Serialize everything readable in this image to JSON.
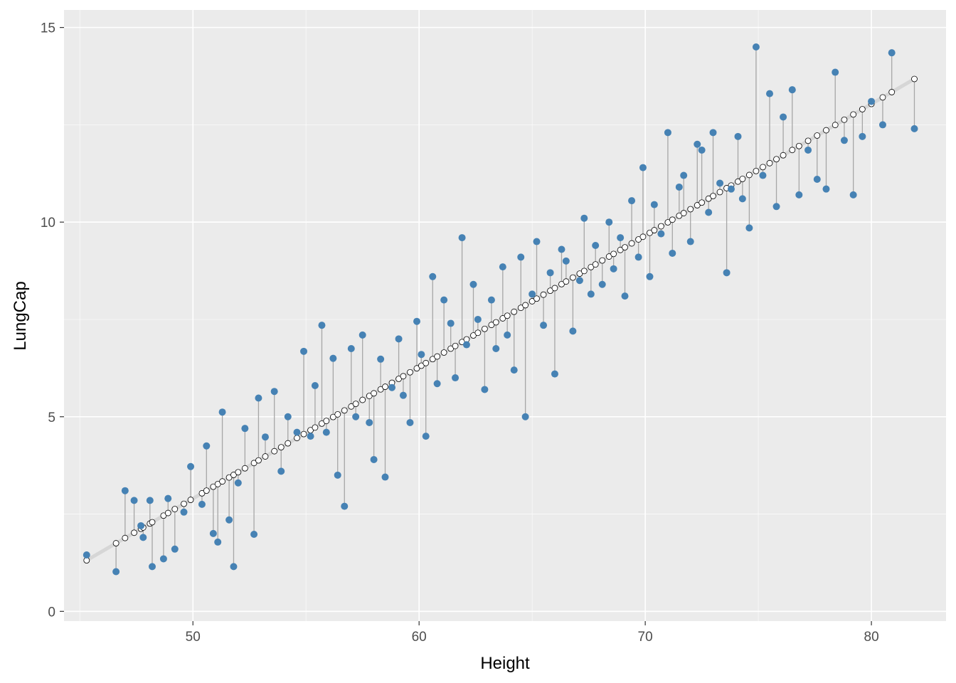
{
  "chart_data": {
    "type": "scatter",
    "title": "",
    "xlabel": "Height",
    "ylabel": "LungCap",
    "xlim": [
      44.3,
      83.3
    ],
    "ylim": [
      -0.25,
      15.45
    ],
    "x_ticks": [
      50,
      60,
      70,
      80
    ],
    "y_ticks": [
      0,
      5,
      10,
      15
    ],
    "x_tick_labels": [
      "50",
      "60",
      "70",
      "80"
    ],
    "y_tick_labels": [
      "0",
      "5",
      "10",
      "15"
    ],
    "grid": true,
    "legend": "none",
    "regression": {
      "intercept": -13.9964,
      "slope": 0.3379
    },
    "colors": {
      "panel_background": "#ebebeb",
      "grid": "#ffffff",
      "observed_points": "#4682b4",
      "fitted_points_fill": "#ffffff",
      "fitted_points_stroke": "#000000",
      "residual_segments": "#a6a6a6",
      "fit_line": "#d6d6d6"
    },
    "series": [
      {
        "role": "observed",
        "x": [
          45.3,
          46.6,
          47.0,
          47.4,
          47.7,
          47.8,
          48.1,
          48.2,
          48.7,
          48.9,
          49.2,
          49.6,
          49.9,
          50.4,
          50.6,
          50.9,
          51.1,
          51.3,
          51.6,
          51.8,
          52.0,
          52.3,
          52.7,
          52.9,
          53.2,
          53.6,
          53.9,
          54.2,
          54.6,
          54.9,
          55.2,
          55.4,
          55.7,
          55.9,
          56.2,
          56.4,
          56.7,
          57.0,
          57.2,
          57.5,
          57.8,
          58.0,
          58.3,
          58.5,
          58.8,
          59.1,
          59.3,
          59.6,
          59.9,
          60.1,
          60.3,
          60.6,
          60.8,
          61.1,
          61.4,
          61.6,
          61.9,
          62.1,
          62.4,
          62.6,
          62.9,
          63.2,
          63.4,
          63.7,
          63.9,
          64.2,
          64.5,
          64.7,
          65.0,
          65.2,
          65.5,
          65.8,
          66.0,
          66.3,
          66.5,
          66.8,
          67.1,
          67.3,
          67.6,
          67.8,
          68.1,
          68.4,
          68.6,
          68.9,
          69.1,
          69.4,
          69.7,
          69.9,
          70.2,
          70.4,
          70.7,
          71.0,
          71.2,
          71.5,
          71.7,
          72.0,
          72.3,
          72.5,
          72.8,
          73.0,
          73.3,
          73.6,
          73.8,
          74.1,
          74.3,
          74.6,
          74.9,
          75.2,
          75.5,
          75.8,
          76.1,
          76.5,
          76.8,
          77.2,
          77.6,
          78.0,
          78.4,
          78.8,
          79.2,
          79.6,
          80.0,
          80.5,
          80.9,
          81.9
        ],
        "y": [
          1.45,
          1.02,
          3.1,
          2.85,
          2.2,
          1.9,
          2.85,
          1.15,
          1.35,
          2.9,
          1.6,
          2.55,
          3.72,
          2.75,
          4.25,
          2.0,
          1.78,
          5.12,
          2.35,
          1.15,
          3.3,
          4.7,
          1.98,
          5.48,
          4.48,
          5.65,
          3.6,
          5.0,
          4.6,
          6.68,
          4.5,
          5.8,
          7.35,
          4.6,
          6.5,
          3.5,
          2.7,
          6.75,
          5.0,
          7.1,
          4.85,
          3.9,
          6.48,
          3.45,
          5.75,
          7.0,
          5.55,
          4.85,
          7.45,
          6.6,
          4.5,
          8.6,
          5.85,
          8.0,
          7.4,
          6.0,
          9.6,
          6.85,
          8.4,
          7.5,
          5.7,
          8.0,
          6.75,
          8.85,
          7.1,
          6.2,
          9.1,
          5.0,
          8.15,
          9.5,
          7.35,
          8.7,
          6.1,
          9.3,
          9.0,
          7.2,
          8.5,
          10.1,
          8.15,
          9.4,
          8.4,
          10.0,
          8.8,
          9.6,
          8.1,
          10.55,
          9.1,
          11.4,
          8.6,
          10.45,
          9.7,
          12.3,
          9.2,
          10.9,
          11.2,
          9.5,
          12.0,
          11.85,
          10.25,
          12.3,
          11.0,
          8.7,
          10.85,
          12.2,
          10.6,
          9.85,
          14.5,
          11.2,
          13.3,
          10.4,
          12.7,
          13.4,
          10.7,
          11.85,
          11.1,
          10.85,
          13.85,
          12.1,
          10.7,
          12.2,
          13.1,
          12.5,
          14.35,
          12.4
        ]
      },
      {
        "role": "fitted",
        "x": [
          45.3,
          81.9
        ],
        "y": [
          1.31,
          13.68
        ]
      }
    ]
  }
}
